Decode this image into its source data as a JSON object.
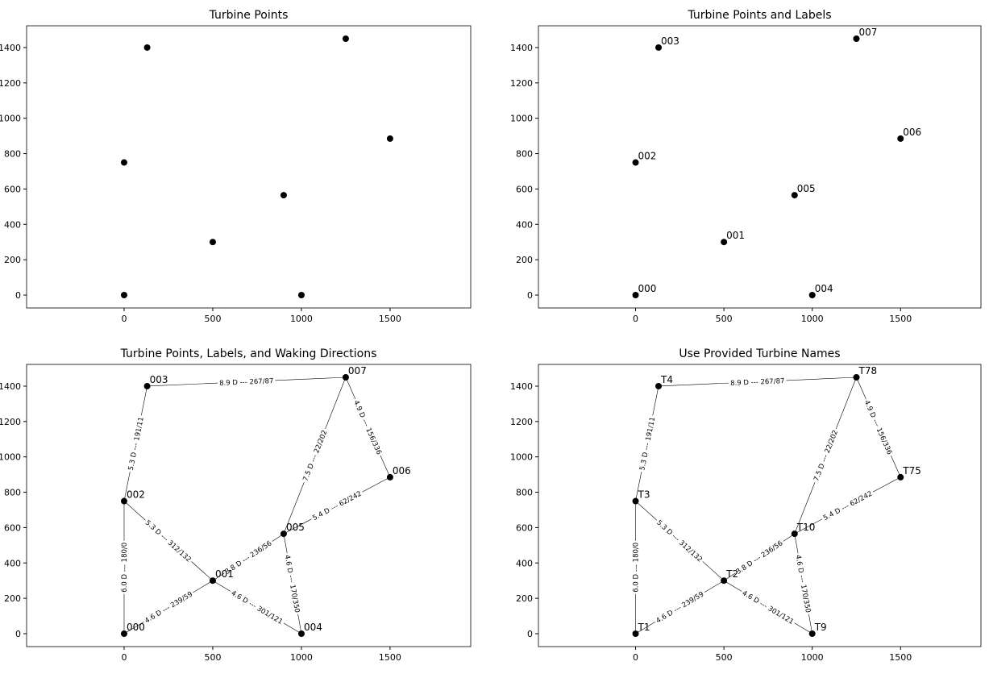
{
  "chart_data": [
    {
      "type": "scatter",
      "title": "Turbine Points",
      "color": "#000000",
      "x": [
        0,
        500,
        0,
        130,
        1000,
        900,
        1500,
        1250
      ],
      "y": [
        0,
        300,
        750,
        1400,
        0,
        565,
        885,
        1450
      ],
      "xlim": [
        -550,
        1955
      ],
      "ylim": [
        -73,
        1523
      ],
      "xticks": [
        0,
        500,
        1000,
        1500
      ],
      "yticks": [
        0,
        200,
        400,
        600,
        800,
        1000,
        1200,
        1400
      ]
    },
    {
      "type": "scatter",
      "title": "Turbine Points and Labels",
      "color": "#000000",
      "x": [
        0,
        500,
        0,
        130,
        1000,
        900,
        1500,
        1250
      ],
      "y": [
        0,
        300,
        750,
        1400,
        0,
        565,
        885,
        1450
      ],
      "labels": [
        "000",
        "001",
        "002",
        "003",
        "004",
        "005",
        "006",
        "007"
      ],
      "xlim": [
        -550,
        1955
      ],
      "ylim": [
        -73,
        1523
      ],
      "xticks": [
        0,
        500,
        1000,
        1500
      ],
      "yticks": [
        0,
        200,
        400,
        600,
        800,
        1000,
        1200,
        1400
      ]
    },
    {
      "type": "scatter",
      "title": "Turbine Points, Labels, and Waking Directions",
      "color": "#000000",
      "x": [
        0,
        500,
        0,
        130,
        1000,
        900,
        1500,
        1250
      ],
      "y": [
        0,
        300,
        750,
        1400,
        0,
        565,
        885,
        1450
      ],
      "labels": [
        "000",
        "001",
        "002",
        "003",
        "004",
        "005",
        "006",
        "007"
      ],
      "edges": [
        {
          "from": 3,
          "to": 7,
          "label": "8.9 D --- 267/87"
        },
        {
          "from": 2,
          "to": 3,
          "label": "5.3 D --- 191/11"
        },
        {
          "from": 7,
          "to": 5,
          "label": "7.5 D --- 22/202"
        },
        {
          "from": 7,
          "to": 6,
          "label": "4.9 D --- 156/336"
        },
        {
          "from": 6,
          "to": 5,
          "label": "5.4 D --- 62/242"
        },
        {
          "from": 2,
          "to": 1,
          "label": "5.3 D --- 312/132"
        },
        {
          "from": 0,
          "to": 2,
          "label": "6.0 D --- 180/0"
        },
        {
          "from": 1,
          "to": 5,
          "label": "3.8 D --- 236/56"
        },
        {
          "from": 0,
          "to": 1,
          "label": "4.6 D --- 239/59"
        },
        {
          "from": 1,
          "to": 4,
          "label": "4.6 D --- 301/121"
        },
        {
          "from": 5,
          "to": 4,
          "label": "4.6 D --- 170/350"
        }
      ],
      "xlim": [
        -550,
        1955
      ],
      "ylim": [
        -73,
        1523
      ],
      "xticks": [
        0,
        500,
        1000,
        1500
      ],
      "yticks": [
        0,
        200,
        400,
        600,
        800,
        1000,
        1200,
        1400
      ]
    },
    {
      "type": "scatter",
      "title": "Use Provided Turbine Names",
      "color": "#000000",
      "x": [
        0,
        500,
        0,
        130,
        1000,
        900,
        1500,
        1250
      ],
      "y": [
        0,
        300,
        750,
        1400,
        0,
        565,
        885,
        1450
      ],
      "labels": [
        "T1",
        "T2",
        "T3",
        "T4",
        "T9",
        "T10",
        "T75",
        "T78"
      ],
      "edges": [
        {
          "from": 3,
          "to": 7,
          "label": "8.9 D --- 267/87"
        },
        {
          "from": 2,
          "to": 3,
          "label": "5.3 D --- 191/11"
        },
        {
          "from": 7,
          "to": 5,
          "label": "7.5 D --- 22/202"
        },
        {
          "from": 7,
          "to": 6,
          "label": "4.9 D --- 156/336"
        },
        {
          "from": 6,
          "to": 5,
          "label": "5.4 D --- 62/242"
        },
        {
          "from": 2,
          "to": 1,
          "label": "5.3 D --- 312/132"
        },
        {
          "from": 0,
          "to": 2,
          "label": "6.0 D --- 180/0"
        },
        {
          "from": 1,
          "to": 5,
          "label": "3.8 D --- 236/56"
        },
        {
          "from": 0,
          "to": 1,
          "label": "4.6 D --- 239/59"
        },
        {
          "from": 1,
          "to": 4,
          "label": "4.6 D --- 301/121"
        },
        {
          "from": 5,
          "to": 4,
          "label": "4.6 D --- 170/350"
        }
      ],
      "xlim": [
        -550,
        1955
      ],
      "ylim": [
        -73,
        1523
      ],
      "xticks": [
        0,
        500,
        1000,
        1500
      ],
      "yticks": [
        0,
        200,
        400,
        600,
        800,
        1000,
        1200,
        1400
      ]
    }
  ]
}
